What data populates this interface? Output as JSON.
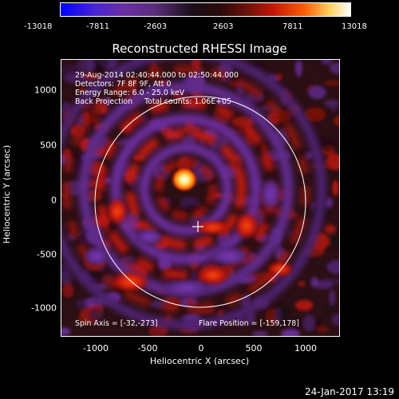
{
  "colorbar": {
    "ticks": [
      "-13018",
      "-7811",
      "-2603",
      "2603",
      "7811",
      "13018"
    ]
  },
  "title": "Reconstructed RHESSI Image",
  "annotations": {
    "time_range": "29-Aug-2014 02:40:44.000 to 02:50:44.000",
    "detectors": "Detectors: 7F 8F 9F, Att 0",
    "energy_range": "Energy Range: 6.0 - 25.0 keV",
    "method_counts": "Back Projection     Total counts: 1.06E+05",
    "spin_axis": "Spin Axis = [-32,-273]",
    "flare_position": "Flare Position = [-159,178]"
  },
  "axes": {
    "xlabel": "Heliocentric X (arcsec)",
    "ylabel": "Heliocentric Y (arcsec)",
    "x_ticks": [
      "-1000",
      "-500",
      "0",
      "500",
      "1000"
    ],
    "y_ticks": [
      "1000",
      "500",
      "0",
      "-500",
      "-1000"
    ]
  },
  "footer": {
    "timestamp": "24-Jan-2017 13:19"
  },
  "colors": {
    "background": "#000000",
    "text": "#ffffff",
    "limb_circle": "#ffffff",
    "source_peak": "#ffd260"
  }
}
